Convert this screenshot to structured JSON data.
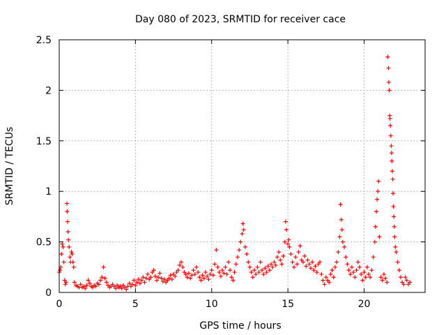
{
  "chart_data": {
    "type": "scatter",
    "title": "Day 080 of 2023, SRMTID for receiver cace",
    "xlabel": "GPS time / hours",
    "ylabel": "SRMTID / TECUs",
    "xlim": [
      0,
      24
    ],
    "ylim": [
      0,
      2.5
    ],
    "x_ticks": [
      0,
      5,
      10,
      15,
      20
    ],
    "x_tick_labels": [
      "0",
      "5",
      "10",
      "15",
      "20"
    ],
    "y_ticks": [
      0,
      0.5,
      1,
      1.5,
      2,
      2.5
    ],
    "y_tick_labels": [
      "0",
      "0.5",
      "1",
      "1.5",
      "2",
      "2.5"
    ],
    "grid": true,
    "marker": "+",
    "marker_color": "#ff0000",
    "series": [
      {
        "name": "SRMTID",
        "points": [
          [
            0.0,
            0.2
          ],
          [
            0.05,
            0.22
          ],
          [
            0.1,
            0.25
          ],
          [
            0.15,
            0.38
          ],
          [
            0.2,
            0.48
          ],
          [
            0.25,
            0.45
          ],
          [
            0.3,
            0.3
          ],
          [
            0.35,
            0.12
          ],
          [
            0.4,
            0.08
          ],
          [
            0.45,
            0.1
          ],
          [
            0.5,
            0.88
          ],
          [
            0.52,
            0.8
          ],
          [
            0.55,
            0.7
          ],
          [
            0.58,
            0.6
          ],
          [
            0.6,
            0.52
          ],
          [
            0.65,
            0.45
          ],
          [
            0.7,
            0.35
          ],
          [
            0.75,
            0.3
          ],
          [
            0.8,
            0.4
          ],
          [
            0.85,
            0.38
          ],
          [
            0.9,
            0.3
          ],
          [
            0.95,
            0.25
          ],
          [
            1.0,
            0.1
          ],
          [
            1.1,
            0.07
          ],
          [
            1.2,
            0.06
          ],
          [
            1.3,
            0.05
          ],
          [
            1.4,
            0.08
          ],
          [
            1.5,
            0.05
          ],
          [
            1.6,
            0.06
          ],
          [
            1.7,
            0.04
          ],
          [
            1.8,
            0.07
          ],
          [
            1.9,
            0.12
          ],
          [
            2.0,
            0.09
          ],
          [
            2.1,
            0.06
          ],
          [
            2.2,
            0.05
          ],
          [
            2.3,
            0.07
          ],
          [
            2.4,
            0.06
          ],
          [
            2.5,
            0.09
          ],
          [
            2.6,
            0.08
          ],
          [
            2.7,
            0.12
          ],
          [
            2.8,
            0.15
          ],
          [
            2.9,
            0.25
          ],
          [
            3.0,
            0.14
          ],
          [
            3.1,
            0.1
          ],
          [
            3.2,
            0.07
          ],
          [
            3.3,
            0.05
          ],
          [
            3.4,
            0.06
          ],
          [
            3.5,
            0.08
          ],
          [
            3.6,
            0.06
          ],
          [
            3.7,
            0.04
          ],
          [
            3.8,
            0.07
          ],
          [
            3.9,
            0.05
          ],
          [
            4.0,
            0.06
          ],
          [
            4.1,
            0.04
          ],
          [
            4.2,
            0.07
          ],
          [
            4.3,
            0.05
          ],
          [
            4.4,
            0.03
          ],
          [
            4.5,
            0.06
          ],
          [
            4.6,
            0.09
          ],
          [
            4.7,
            0.06
          ],
          [
            4.8,
            0.08
          ],
          [
            4.9,
            0.12
          ],
          [
            5.0,
            0.07
          ],
          [
            5.1,
            0.1
          ],
          [
            5.2,
            0.13
          ],
          [
            5.3,
            0.09
          ],
          [
            5.4,
            0.12
          ],
          [
            5.5,
            0.15
          ],
          [
            5.6,
            0.1
          ],
          [
            5.7,
            0.14
          ],
          [
            5.8,
            0.18
          ],
          [
            5.9,
            0.13
          ],
          [
            6.0,
            0.15
          ],
          [
            6.1,
            0.2
          ],
          [
            6.2,
            0.22
          ],
          [
            6.3,
            0.16
          ],
          [
            6.4,
            0.12
          ],
          [
            6.5,
            0.15
          ],
          [
            6.6,
            0.19
          ],
          [
            6.7,
            0.14
          ],
          [
            6.8,
            0.11
          ],
          [
            6.9,
            0.13
          ],
          [
            7.0,
            0.1
          ],
          [
            7.1,
            0.12
          ],
          [
            7.2,
            0.14
          ],
          [
            7.3,
            0.17
          ],
          [
            7.4,
            0.13
          ],
          [
            7.5,
            0.18
          ],
          [
            7.6,
            0.16
          ],
          [
            7.7,
            0.2
          ],
          [
            7.8,
            0.22
          ],
          [
            7.9,
            0.27
          ],
          [
            8.0,
            0.3
          ],
          [
            8.1,
            0.25
          ],
          [
            8.2,
            0.2
          ],
          [
            8.3,
            0.18
          ],
          [
            8.4,
            0.15
          ],
          [
            8.5,
            0.19
          ],
          [
            8.6,
            0.14
          ],
          [
            8.7,
            0.17
          ],
          [
            8.8,
            0.22
          ],
          [
            8.9,
            0.18
          ],
          [
            9.0,
            0.25
          ],
          [
            9.1,
            0.2
          ],
          [
            9.2,
            0.15
          ],
          [
            9.3,
            0.12
          ],
          [
            9.4,
            0.17
          ],
          [
            9.5,
            0.14
          ],
          [
            9.6,
            0.2
          ],
          [
            9.7,
            0.16
          ],
          [
            9.8,
            0.13
          ],
          [
            9.9,
            0.18
          ],
          [
            10.0,
            0.22
          ],
          [
            10.1,
            0.17
          ],
          [
            10.2,
            0.28
          ],
          [
            10.3,
            0.42
          ],
          [
            10.4,
            0.25
          ],
          [
            10.5,
            0.2
          ],
          [
            10.6,
            0.16
          ],
          [
            10.7,
            0.22
          ],
          [
            10.8,
            0.19
          ],
          [
            10.9,
            0.25
          ],
          [
            11.0,
            0.18
          ],
          [
            11.1,
            0.3
          ],
          [
            11.2,
            0.22
          ],
          [
            11.3,
            0.15
          ],
          [
            11.4,
            0.12
          ],
          [
            11.5,
            0.2
          ],
          [
            11.6,
            0.28
          ],
          [
            11.7,
            0.35
          ],
          [
            11.8,
            0.42
          ],
          [
            11.9,
            0.5
          ],
          [
            12.0,
            0.58
          ],
          [
            12.05,
            0.68
          ],
          [
            12.1,
            0.62
          ],
          [
            12.2,
            0.45
          ],
          [
            12.3,
            0.38
          ],
          [
            12.4,
            0.3
          ],
          [
            12.5,
            0.25
          ],
          [
            12.6,
            0.2
          ],
          [
            12.7,
            0.15
          ],
          [
            12.8,
            0.22
          ],
          [
            12.9,
            0.18
          ],
          [
            13.0,
            0.25
          ],
          [
            13.1,
            0.2
          ],
          [
            13.2,
            0.3
          ],
          [
            13.3,
            0.22
          ],
          [
            13.4,
            0.18
          ],
          [
            13.5,
            0.24
          ],
          [
            13.6,
            0.2
          ],
          [
            13.7,
            0.26
          ],
          [
            13.8,
            0.22
          ],
          [
            13.9,
            0.28
          ],
          [
            14.0,
            0.25
          ],
          [
            14.1,
            0.3
          ],
          [
            14.2,
            0.27
          ],
          [
            14.3,
            0.35
          ],
          [
            14.4,
            0.4
          ],
          [
            14.5,
            0.32
          ],
          [
            14.6,
            0.28
          ],
          [
            14.7,
            0.36
          ],
          [
            14.8,
            0.5
          ],
          [
            14.85,
            0.7
          ],
          [
            14.9,
            0.62
          ],
          [
            15.0,
            0.48
          ],
          [
            15.05,
            0.52
          ],
          [
            15.1,
            0.45
          ],
          [
            15.2,
            0.38
          ],
          [
            15.3,
            0.3
          ],
          [
            15.4,
            0.25
          ],
          [
            15.5,
            0.35
          ],
          [
            15.6,
            0.28
          ],
          [
            15.7,
            0.4
          ],
          [
            15.8,
            0.46
          ],
          [
            15.9,
            0.32
          ],
          [
            16.0,
            0.3
          ],
          [
            16.1,
            0.36
          ],
          [
            16.2,
            0.26
          ],
          [
            16.3,
            0.32
          ],
          [
            16.4,
            0.28
          ],
          [
            16.5,
            0.24
          ],
          [
            16.6,
            0.3
          ],
          [
            16.7,
            0.22
          ],
          [
            16.8,
            0.26
          ],
          [
            16.9,
            0.2
          ],
          [
            17.0,
            0.28
          ],
          [
            17.1,
            0.3
          ],
          [
            17.2,
            0.18
          ],
          [
            17.3,
            0.12
          ],
          [
            17.4,
            0.08
          ],
          [
            17.5,
            0.15
          ],
          [
            17.6,
            0.12
          ],
          [
            17.7,
            0.1
          ],
          [
            17.8,
            0.18
          ],
          [
            17.9,
            0.22
          ],
          [
            18.0,
            0.15
          ],
          [
            18.1,
            0.25
          ],
          [
            18.2,
            0.3
          ],
          [
            18.3,
            0.4
          ],
          [
            18.4,
            0.55
          ],
          [
            18.45,
            0.87
          ],
          [
            18.5,
            0.72
          ],
          [
            18.55,
            0.62
          ],
          [
            18.6,
            0.5
          ],
          [
            18.7,
            0.45
          ],
          [
            18.8,
            0.35
          ],
          [
            18.9,
            0.28
          ],
          [
            19.0,
            0.22
          ],
          [
            19.1,
            0.18
          ],
          [
            19.2,
            0.25
          ],
          [
            19.3,
            0.2
          ],
          [
            19.4,
            0.15
          ],
          [
            19.5,
            0.22
          ],
          [
            19.6,
            0.3
          ],
          [
            19.7,
            0.25
          ],
          [
            19.8,
            0.18
          ],
          [
            19.9,
            0.12
          ],
          [
            20.0,
            0.2
          ],
          [
            20.1,
            0.15
          ],
          [
            20.2,
            0.25
          ],
          [
            20.3,
            0.18
          ],
          [
            20.4,
            0.15
          ],
          [
            20.5,
            0.22
          ],
          [
            20.6,
            0.35
          ],
          [
            20.7,
            0.5
          ],
          [
            20.75,
            0.65
          ],
          [
            20.8,
            0.8
          ],
          [
            20.85,
            0.92
          ],
          [
            20.9,
            1.0
          ],
          [
            20.95,
            1.1
          ],
          [
            21.0,
            0.55
          ],
          [
            21.1,
            0.15
          ],
          [
            21.2,
            0.12
          ],
          [
            21.3,
            0.18
          ],
          [
            21.4,
            0.14
          ],
          [
            21.5,
            0.1
          ],
          [
            21.55,
            2.33
          ],
          [
            21.6,
            2.22
          ],
          [
            21.62,
            2.08
          ],
          [
            21.65,
            2.0
          ],
          [
            21.68,
            1.75
          ],
          [
            21.7,
            1.72
          ],
          [
            21.72,
            1.65
          ],
          [
            21.75,
            1.55
          ],
          [
            21.78,
            1.45
          ],
          [
            21.8,
            1.38
          ],
          [
            21.82,
            1.3
          ],
          [
            21.85,
            1.2
          ],
          [
            21.88,
            1.12
          ],
          [
            21.9,
            0.98
          ],
          [
            21.92,
            0.85
          ],
          [
            21.95,
            0.75
          ],
          [
            21.98,
            0.65
          ],
          [
            22.0,
            0.55
          ],
          [
            22.05,
            0.45
          ],
          [
            22.1,
            0.4
          ],
          [
            22.2,
            0.3
          ],
          [
            22.3,
            0.22
          ],
          [
            22.4,
            0.15
          ],
          [
            22.5,
            0.1
          ],
          [
            22.6,
            0.08
          ],
          [
            22.7,
            0.15
          ],
          [
            22.8,
            0.12
          ],
          [
            22.9,
            0.08
          ],
          [
            23.0,
            0.1
          ]
        ]
      }
    ]
  }
}
